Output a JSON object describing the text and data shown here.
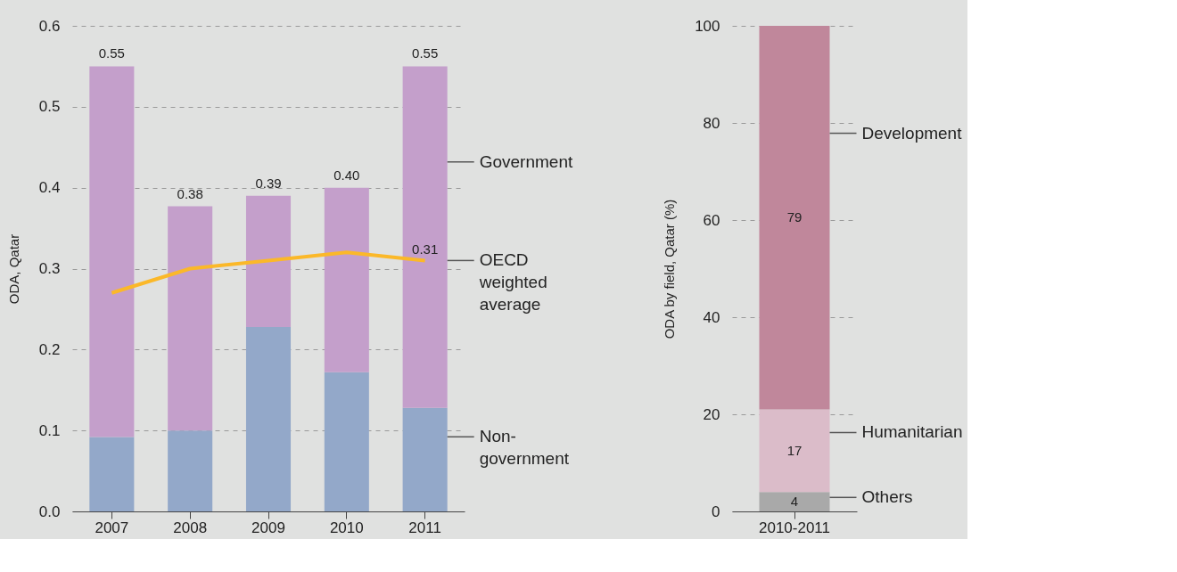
{
  "chart_data": [
    {
      "type": "bar",
      "stacked": true,
      "ylabel": "ODA, Qatar",
      "categories": [
        "2007",
        "2008",
        "2009",
        "2010",
        "2011"
      ],
      "ylim": [
        0,
        0.6
      ],
      "yticks": [
        {
          "value": 0,
          "label": "0.0"
        },
        0.1,
        0.2,
        0.3,
        0.4,
        0.5,
        0.6
      ],
      "grid": "y",
      "line_style": "solid",
      "marker": "none",
      "series": [
        {
          "name": "Non-government",
          "color": "#93a8c9",
          "values": [
            0.092,
            0.1,
            0.228,
            0.172,
            0.128
          ]
        },
        {
          "name": "Government",
          "color": "#c49fcb",
          "values": [
            0.458,
            0.277,
            0.162,
            0.228,
            0.422
          ]
        },
        {
          "name": "OECD weighted average",
          "type": "line",
          "color": "#fbb829",
          "values": [
            0.27,
            0.3,
            0.31,
            0.32,
            0.31
          ]
        }
      ],
      "totals": [
        "0.55",
        "0.38",
        "0.39",
        "0.40",
        "0.55"
      ],
      "annotations": [
        {
          "text": "0.31",
          "x": "2011",
          "y": 0.31
        }
      ]
    },
    {
      "type": "bar",
      "stacked": true,
      "ylabel": "ODA by field, Qatar (%)",
      "categories": [
        "2010-2011"
      ],
      "ylim": [
        0,
        100
      ],
      "yticks": [
        0,
        20,
        40,
        60,
        80,
        100
      ],
      "grid": "y",
      "data_labels": true,
      "series": [
        {
          "name": "Others",
          "color": "#a9a9a9",
          "values": [
            4
          ]
        },
        {
          "name": "Humanitarian",
          "color": "#dbbcc9",
          "values": [
            17
          ]
        },
        {
          "name": "Development",
          "color": "#c0879b",
          "values": [
            79
          ]
        }
      ]
    }
  ]
}
